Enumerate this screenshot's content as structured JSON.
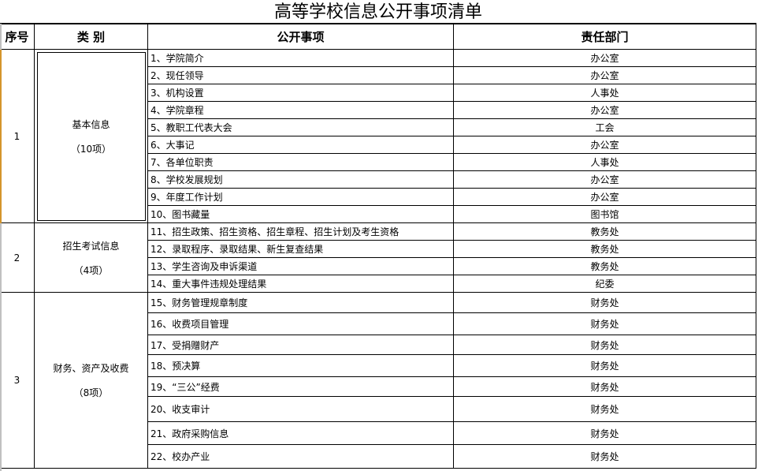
{
  "title": "高等学校信息公开事项清单",
  "headers": {
    "index": "序号",
    "category": "类 别",
    "item": "公开事项",
    "dept": "责任部门"
  },
  "groups": [
    {
      "index": "1",
      "category": "基本信息",
      "count": "（10项）",
      "items": [
        {
          "item": "1、学院简介",
          "dept": "办公室"
        },
        {
          "item": "2、现任领导",
          "dept": "办公室"
        },
        {
          "item": "3、机构设置",
          "dept": "人事处"
        },
        {
          "item": "4、学院章程",
          "dept": "办公室"
        },
        {
          "item": "5、教职工代表大会",
          "dept": "工会"
        },
        {
          "item": "6、大事记",
          "dept": "办公室"
        },
        {
          "item": "7、各单位职责",
          "dept": "人事处"
        },
        {
          "item": "8、学校发展规划",
          "dept": "办公室"
        },
        {
          "item": "9、年度工作计划",
          "dept": "办公室"
        },
        {
          "item": "10、图书藏量",
          "dept": "图书馆"
        }
      ]
    },
    {
      "index": "2",
      "category": "招生考试信息",
      "count": "（4项）",
      "items": [
        {
          "item": "11、招生政策、招生资格、招生章程、招生计划及考生资格",
          "dept": "教务处"
        },
        {
          "item": "12、录取程序、录取结果、新生复查结果",
          "dept": "教务处"
        },
        {
          "item": "13、学生咨询及申诉渠道",
          "dept": "教务处"
        },
        {
          "item": "14、重大事件违规处理结果",
          "dept": "纪委"
        }
      ]
    },
    {
      "index": "3",
      "category": "财务、资产及收费",
      "count": "（8项）",
      "items": [
        {
          "item": "15、财务管理规章制度",
          "dept": "财务处"
        },
        {
          "item": "16、收费项目管理",
          "dept": "财务处"
        },
        {
          "item": "17、受捐赠财产",
          "dept": "财务处"
        },
        {
          "item": "18、预决算",
          "dept": "财务处"
        },
        {
          "item": "19、“三公”经费",
          "dept": "财务处"
        },
        {
          "item": "20、收支审计",
          "dept": "财务处"
        },
        {
          "item": "21、政府采购信息",
          "dept": "财务处"
        },
        {
          "item": "22、校办产业",
          "dept": "财务处"
        }
      ]
    }
  ]
}
